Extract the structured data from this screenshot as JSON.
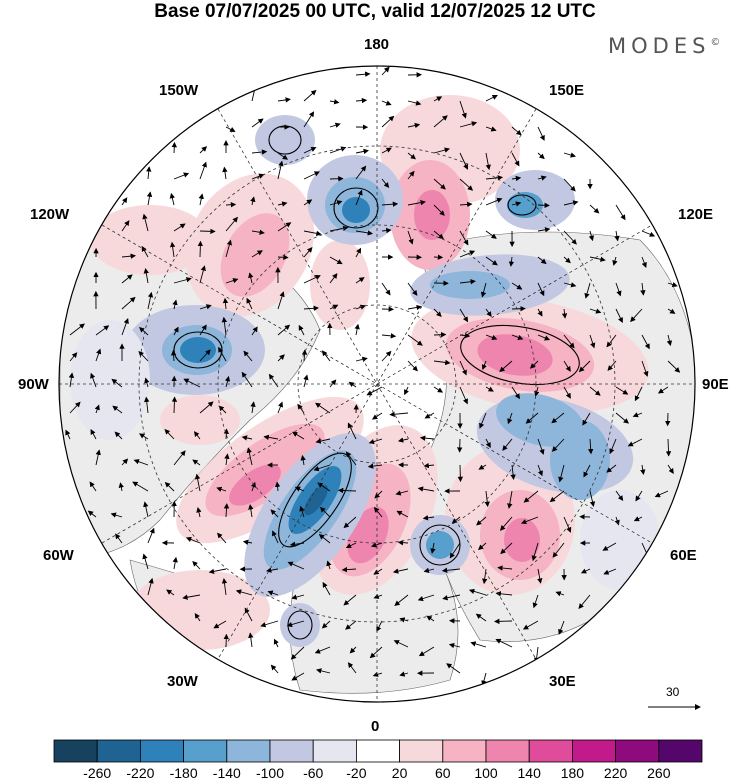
{
  "title": "Base 07/07/2025 00 UTC, valid 12/07/2025 12 UTC",
  "brand": "MODES",
  "brand_mark": "©",
  "longitude_labels": {
    "n180": "180",
    "w150": "150W",
    "e150": "150E",
    "w120": "120W",
    "e120": "120E",
    "w90": "90W",
    "e90": "90E",
    "w60": "60W",
    "e60": "60E",
    "w30": "30W",
    "e30": "30E",
    "s0": "0"
  },
  "vector_scale": {
    "label": "30"
  },
  "colorbar": {
    "colors": [
      "#17425f",
      "#1e6392",
      "#2e81b9",
      "#579fcc",
      "#8eb5da",
      "#c2c8e2",
      "#e6e6f1",
      "#ffffff",
      "#f8d9db",
      "#f5b3c3",
      "#ee85ae",
      "#e04c9c",
      "#c21a8a",
      "#8f0a7c",
      "#55066b"
    ],
    "labels": [
      "-260",
      "-220",
      "-180",
      "-140",
      "-100",
      "-60",
      "-20",
      "20",
      "60",
      "100",
      "140",
      "180",
      "220",
      "260"
    ]
  },
  "colors": {
    "land": "#ececec",
    "ocean": "#ffffff",
    "contour": "#000000"
  }
}
